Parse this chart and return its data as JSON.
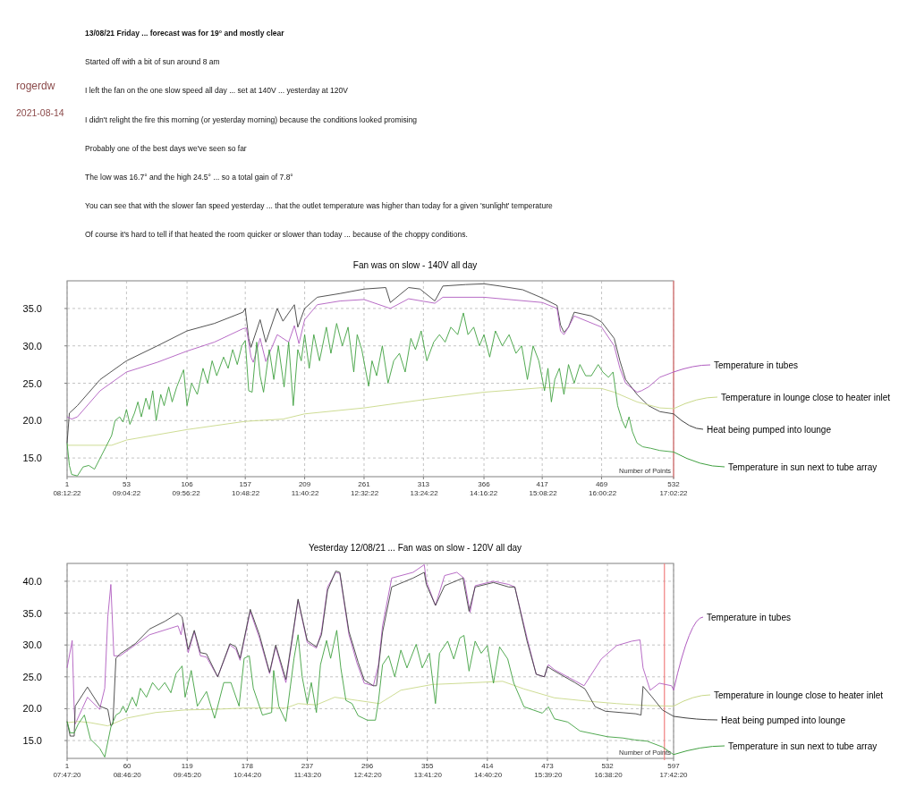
{
  "chart_data": [
    {
      "type": "line",
      "title": "Fan was on slow - 140V all day",
      "xlabel": "Number of Points",
      "annotations": [
        "13/08/21     Friday  ...  forecast was for 19° and mostly clear",
        "Started off with a bit of sun around 8 am",
        "I left the fan on the one slow speed all day  ...  set at 140V  ...  yesterday at 120V",
        "I didn't relight the fire this morning (or yesterday morning) because the conditions looked promising",
        "Probably one of the best days we've seen so far",
        "The low was 16.7° and the high 24.5°  ...  so a total gain of 7.8°",
        "You can see that with the slower fan speed yesterday  ...  that the outlet temperature was higher than today for a given 'sunlight' temperature",
        "Of course it's hard to tell if that heated the room quicker or slower than today  ...  because of the choppy conditions.",
        "rogerdw",
        "2021-08-14"
      ],
      "xlim": [
        1,
        532
      ],
      "ylim": [
        12.5,
        38.7
      ],
      "xticks": [
        1,
        53,
        106,
        157,
        209,
        261,
        313,
        366,
        417,
        469,
        532
      ],
      "x2lim": [
        8.2061,
        17.0394
      ],
      "x2ticks": [
        {
          "value": 8.2061,
          "label": "08:12:22"
        },
        {
          "value": 9.0728,
          "label": "09:04:22"
        },
        {
          "value": 9.9394,
          "label": "09:56:22"
        },
        {
          "value": 10.8061,
          "label": "10:48:22"
        },
        {
          "value": 11.6728,
          "label": "11:40:22"
        },
        {
          "value": 12.5394,
          "label": "12:32:22"
        },
        {
          "value": 13.4061,
          "label": "13:24:22"
        },
        {
          "value": 14.2728,
          "label": "14:16:22"
        },
        {
          "value": 15.1394,
          "label": "15:08:22"
        },
        {
          "value": 16.0061,
          "label": "16:00:22"
        },
        {
          "value": 17.0394,
          "label": "17:02:22"
        }
      ],
      "yticks": [
        {
          "value": 15,
          "label": "15.0"
        },
        {
          "value": 20,
          "label": "20.0"
        },
        {
          "value": 25,
          "label": "25.0"
        },
        {
          "value": 30,
          "label": "30.0"
        },
        {
          "value": 35,
          "label": "35.0"
        }
      ],
      "grid": true,
      "legend": "right",
      "marker": "none",
      "line_style": "solid",
      "ref_lines": [
        {
          "axis": "x",
          "value": 532,
          "label": null,
          "color": "#f08080"
        }
      ],
      "series": [
        {
          "name": "Heat being pumped into lounge",
          "color": "#404040",
          "x": [
            1,
            3,
            10,
            30,
            53,
            80,
            106,
            130,
            155,
            157,
            160,
            162,
            170,
            175,
            185,
            190,
            200,
            203,
            209,
            220,
            240,
            261,
            280,
            284,
            300,
            310,
            323,
            330,
            350,
            366,
            380,
            400,
            417,
            430,
            433,
            436,
            440,
            445,
            460,
            469,
            480,
            485,
            490,
            500,
            510,
            520,
            532
          ],
          "values": [
            17,
            21,
            22,
            25.5,
            28,
            30,
            32,
            33,
            34.5,
            35,
            31,
            29.8,
            33.5,
            30.5,
            35,
            33.3,
            35.5,
            32.5,
            35,
            36.5,
            37,
            37.6,
            37.8,
            35.8,
            37.8,
            37.6,
            36,
            38,
            38.2,
            38.3,
            38,
            37.5,
            36.4,
            35.4,
            32.8,
            31.8,
            32.5,
            34.5,
            34,
            33.2,
            31,
            28,
            25.5,
            23.5,
            22,
            21.2,
            20.9
          ]
        },
        {
          "name": "Temperature in tubes",
          "color": "#b05cc0",
          "x": [
            1,
            5,
            10,
            30,
            53,
            80,
            106,
            130,
            155,
            158,
            162,
            164,
            170,
            175,
            185,
            195,
            200,
            204,
            209,
            220,
            240,
            261,
            284,
            300,
            323,
            330,
            366,
            417,
            430,
            433,
            436,
            440,
            445,
            469,
            480,
            485,
            490,
            500,
            504,
            510,
            520,
            532
          ],
          "values": [
            20.5,
            20.2,
            20.5,
            24,
            26.5,
            27.8,
            29.3,
            30.5,
            32.3,
            32.4,
            28.5,
            27.8,
            31,
            27.9,
            31.5,
            30.5,
            32.7,
            30.3,
            33.5,
            35.5,
            36,
            36.2,
            35,
            36.3,
            35.7,
            36.5,
            36.5,
            35.8,
            35,
            32,
            31.5,
            32.5,
            34,
            32.5,
            30,
            27,
            25,
            23.8,
            24,
            24.5,
            25.8,
            26.5
          ]
        },
        {
          "name": "Temperature in lounge close to heater inlet",
          "color": "#c8d888",
          "x": [
            1,
            40,
            53,
            106,
            157,
            190,
            209,
            261,
            313,
            366,
            417,
            469,
            480,
            500,
            520,
            532
          ],
          "values": [
            16.7,
            16.7,
            17.4,
            18.8,
            19.9,
            20.2,
            20.9,
            21.7,
            22.8,
            23.8,
            24.4,
            24.3,
            23.8,
            22.5,
            21.7,
            21.6
          ]
        },
        {
          "name": "Temperature in sun next to tube array",
          "color": "#40a040",
          "x": [
            1,
            3,
            5,
            10,
            15,
            20,
            25,
            30,
            35,
            40,
            43,
            47,
            50,
            53,
            56,
            60,
            63,
            66,
            70,
            73,
            76,
            79,
            83,
            86,
            90,
            93,
            97,
            103,
            106,
            110,
            115,
            120,
            124,
            128,
            132,
            138,
            142,
            146,
            150,
            154,
            157,
            160,
            163,
            167,
            170,
            173,
            178,
            182,
            186,
            191,
            195,
            199,
            203,
            206,
            209,
            213,
            217,
            222,
            228,
            232,
            237,
            242,
            247,
            252,
            255,
            259,
            265,
            268,
            272,
            277,
            282,
            287,
            292,
            297,
            302,
            306,
            311,
            316,
            322,
            327,
            332,
            337,
            343,
            348,
            352,
            357,
            362,
            366,
            371,
            376,
            382,
            388,
            394,
            399,
            404,
            409,
            414,
            419,
            422,
            425,
            428,
            432,
            436,
            440,
            445,
            450,
            455,
            460,
            466,
            470,
            475,
            479,
            483,
            487,
            490,
            493,
            496,
            500,
            505,
            512,
            520,
            532
          ],
          "values": [
            17,
            14,
            12.8,
            12.6,
            13.8,
            14,
            13.5,
            15,
            16.5,
            18,
            20,
            20.5,
            19.8,
            21.5,
            19.5,
            21,
            22.5,
            20.5,
            23,
            21.5,
            24,
            20,
            23.5,
            22,
            24.5,
            22.5,
            24.5,
            26.8,
            22,
            25,
            23.5,
            27,
            25,
            28,
            26,
            28.5,
            27,
            29.5,
            27.5,
            30,
            30.7,
            24,
            23.8,
            30.5,
            26,
            23.8,
            29.5,
            25.5,
            30,
            24.5,
            30.5,
            22,
            29.5,
            28,
            31.5,
            27,
            31.5,
            28,
            32.5,
            29,
            33,
            30,
            32.5,
            26.5,
            31.5,
            29.5,
            24.6,
            28,
            26,
            30,
            25,
            28,
            29,
            26.5,
            31,
            29.5,
            32,
            28,
            30.5,
            31.5,
            30.5,
            32.5,
            31.5,
            34.4,
            31.5,
            32.5,
            30,
            31.5,
            28.5,
            32,
            30,
            31.5,
            29,
            30,
            25.5,
            30,
            28,
            24,
            27,
            22.5,
            25.5,
            27,
            23.5,
            27.5,
            25,
            27.5,
            26,
            26,
            27.5,
            26.5,
            25.8,
            26.5,
            22,
            20,
            19,
            20.5,
            18.5,
            17,
            16.5,
            16.3,
            16,
            15.8
          ]
        }
      ]
    },
    {
      "type": "line",
      "title": "Yesterday   12/08/21   ...  Fan was on slow - 120V all day",
      "xlabel": "Number of Points",
      "xlim": [
        1,
        597
      ],
      "ylim": [
        12.2,
        42.8
      ],
      "xticks": [
        1,
        60,
        119,
        178,
        237,
        296,
        355,
        414,
        473,
        532,
        597
      ],
      "x2lim": [
        7.7889,
        17.7056
      ],
      "x2ticks": [
        {
          "value": 7.7889,
          "label": "07:47:20"
        },
        {
          "value": 8.7722,
          "label": "08:46:20"
        },
        {
          "value": 9.7556,
          "label": "09:45:20"
        },
        {
          "value": 10.7389,
          "label": "10:44:20"
        },
        {
          "value": 11.7222,
          "label": "11:43:20"
        },
        {
          "value": 12.7056,
          "label": "12:42:20"
        },
        {
          "value": 13.6889,
          "label": "13:41:20"
        },
        {
          "value": 14.6722,
          "label": "14:40:20"
        },
        {
          "value": 15.6556,
          "label": "15:39:20"
        },
        {
          "value": 16.6389,
          "label": "16:38:20"
        },
        {
          "value": 17.7056,
          "label": "17:42:20"
        }
      ],
      "yticks": [
        {
          "value": 15,
          "label": "15.0"
        },
        {
          "value": 20,
          "label": "20.0"
        },
        {
          "value": 25,
          "label": "25.0"
        },
        {
          "value": 30,
          "label": "30.0"
        },
        {
          "value": 35,
          "label": "35.0"
        },
        {
          "value": 40,
          "label": "40.0"
        }
      ],
      "grid": true,
      "legend": "right",
      "marker": "none",
      "line_style": "solid",
      "ref_lines": [
        {
          "axis": "x",
          "value": 588,
          "label": null,
          "color": "#f08080"
        }
      ],
      "series": [
        {
          "name": "Temperature in tubes",
          "color": "#b05cc0",
          "x": [
            1,
            6,
            8,
            9,
            21,
            33,
            38,
            41,
            44,
            47,
            53,
            82,
            110,
            113,
            115,
            120,
            126,
            132,
            138,
            149,
            161,
            167,
            171,
            181,
            190,
            200,
            206,
            216,
            228,
            237,
            246,
            251,
            257,
            265,
            269,
            278,
            286,
            293,
            302,
            307,
            311,
            320,
            341,
            352,
            354,
            363,
            372,
            384,
            391,
            397,
            402,
            420,
            435,
            441,
            453,
            462,
            470,
            474,
            480,
            501,
            509,
            526,
            541,
            556,
            564,
            567,
            574,
            583,
            595,
            597
          ],
          "values": [
            26.4,
            30.7,
            19.9,
            17.6,
            21.8,
            19.9,
            23.2,
            34.4,
            39.5,
            28.3,
            28.3,
            31.6,
            33,
            31.6,
            33.5,
            28.8,
            32.1,
            28.3,
            28.1,
            25,
            30,
            29.3,
            27.6,
            35.3,
            31.1,
            25.5,
            29.7,
            24.1,
            37,
            30.4,
            29.5,
            32.1,
            39.1,
            41.4,
            41.2,
            31.6,
            27.1,
            24,
            23.6,
            26.9,
            33,
            40.5,
            41.4,
            42.6,
            40,
            36.2,
            40.9,
            41.4,
            40.5,
            35.1,
            39.3,
            40,
            39.5,
            39.1,
            31.1,
            25.4,
            25,
            26.9,
            26.1,
            24.3,
            23.6,
            27.8,
            29.9,
            30.6,
            30.8,
            26.4,
            22.9,
            24,
            23.6,
            22.9
          ]
        },
        {
          "name": "Temperature in lounge close to heater inlet",
          "color": "#c8d888",
          "x": [
            1,
            12,
            24,
            41,
            59,
            88,
            117,
            146,
            176,
            205,
            216,
            228,
            246,
            264,
            286,
            308,
            329,
            360,
            390,
            429,
            450,
            480,
            511,
            541,
            571,
            597
          ],
          "values": [
            17.8,
            18,
            17.8,
            17.3,
            18.5,
            19.4,
            19.8,
            19.9,
            20.1,
            20.1,
            20.1,
            20.8,
            20.6,
            21.8,
            21.3,
            20.8,
            22.9,
            23.8,
            24,
            24.3,
            23.1,
            21.7,
            21.2,
            20.8,
            20.5,
            20.4
          ]
        },
        {
          "name": "Heat being pumped into lounge",
          "color": "#404040",
          "x": [
            1,
            4,
            8,
            9,
            21,
            33,
            41,
            44,
            46,
            49,
            53,
            68,
            82,
            97,
            110,
            114,
            120,
            126,
            132,
            138,
            149,
            161,
            167,
            171,
            181,
            190,
            200,
            206,
            216,
            228,
            237,
            246,
            251,
            257,
            265,
            269,
            278,
            287,
            293,
            302,
            305,
            311,
            320,
            341,
            352,
            354,
            363,
            372,
            390,
            396,
            402,
            420,
            435,
            441,
            453,
            462,
            470,
            473,
            480,
            500,
            510,
            520,
            530,
            560,
            565,
            567,
            575,
            586,
            597
          ],
          "values": [
            18,
            15.7,
            15.7,
            20.4,
            23.4,
            20.4,
            19.9,
            17.3,
            17.6,
            27.9,
            28.6,
            30.2,
            32.5,
            33.7,
            35,
            34.4,
            29.3,
            32.3,
            28.8,
            28.6,
            25,
            30.2,
            29.7,
            27.9,
            35.6,
            31.6,
            25.7,
            30,
            24.6,
            37.2,
            30.7,
            29.7,
            31.6,
            38.6,
            41.6,
            41.4,
            32.1,
            27.3,
            24.5,
            23.6,
            23.6,
            32,
            39.1,
            40.5,
            41.4,
            39.5,
            36.2,
            39.3,
            40.5,
            35.3,
            39.1,
            39.8,
            39.1,
            39.1,
            30.6,
            25.4,
            25,
            26.6,
            25.9,
            24.1,
            23.1,
            20.3,
            19.6,
            19.2,
            19,
            23.5,
            22,
            19.8,
            18.8
          ]
        },
        {
          "name": "Temperature in sun next to tube array",
          "color": "#40a040",
          "x": [
            1,
            4,
            8,
            12,
            18,
            21,
            24,
            33,
            38,
            44,
            49,
            53,
            56,
            59,
            65,
            69,
            73,
            79,
            85,
            91,
            97,
            103,
            108,
            114,
            117,
            123,
            129,
            138,
            146,
            155,
            162,
            170,
            175,
            180,
            184,
            193,
            202,
            204,
            209,
            216,
            224,
            228,
            232,
            237,
            241,
            246,
            250,
            256,
            260,
            266,
            270,
            275,
            281,
            287,
            296,
            304,
            307,
            311,
            317,
            323,
            329,
            335,
            344,
            350,
            357,
            363,
            367,
            375,
            381,
            387,
            391,
            396,
            402,
            408,
            414,
            420,
            426,
            434,
            440,
            450,
            459,
            468,
            474,
            480,
            493,
            505,
            517,
            532,
            547,
            559,
            571,
            586,
            597
          ],
          "values": [
            18,
            16.2,
            16.2,
            17.6,
            19,
            17.1,
            15.2,
            13.8,
            12.4,
            17.1,
            19,
            19.4,
            20.4,
            19.4,
            21.8,
            20.4,
            23.2,
            21.8,
            24.1,
            22.9,
            24.1,
            22.5,
            25.5,
            26.7,
            21.8,
            26,
            20.4,
            22.7,
            18.5,
            24.1,
            24.1,
            20.4,
            27.9,
            28.3,
            23.2,
            19,
            19.4,
            26,
            20.4,
            18,
            27.9,
            31.6,
            25,
            20.8,
            24.1,
            19.4,
            26.9,
            30.7,
            27.9,
            32.3,
            26.4,
            21.3,
            20.8,
            18.9,
            18.2,
            18.2,
            21.2,
            26.9,
            28.3,
            25,
            29.2,
            26.4,
            30.1,
            26.4,
            28.7,
            20.8,
            28.7,
            30.6,
            27.8,
            31.1,
            31.5,
            25.9,
            30.6,
            28.7,
            29.9,
            24,
            29.7,
            27.8,
            24,
            20.3,
            19.8,
            19.3,
            20.3,
            18.4,
            17.9,
            16.5,
            16.1,
            15.6,
            15.4,
            15.1,
            14.9,
            14,
            12.8
          ]
        }
      ]
    }
  ]
}
